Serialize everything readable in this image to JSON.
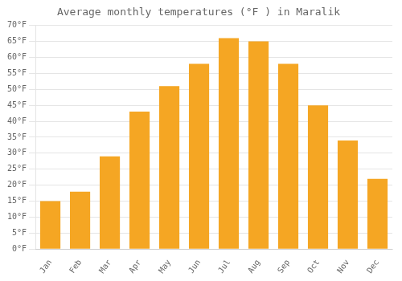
{
  "chart_data": {
    "type": "bar",
    "title": "Average monthly temperatures (°F ) in Maralik",
    "categories": [
      "Jan",
      "Feb",
      "Mar",
      "Apr",
      "May",
      "Jun",
      "Jul",
      "Aug",
      "Sep",
      "Oct",
      "Nov",
      "Dec"
    ],
    "values": [
      15,
      18,
      29,
      43,
      51,
      58,
      66,
      65,
      58,
      45,
      34,
      22
    ],
    "color": "#F5A623",
    "ylim": [
      0,
      70
    ],
    "yticks": [
      {
        "value": 0,
        "label": "0°F"
      },
      {
        "value": 5,
        "label": "5°F"
      },
      {
        "value": 10,
        "label": "10°F"
      },
      {
        "value": 15,
        "label": "15°F"
      },
      {
        "value": 20,
        "label": "20°F"
      },
      {
        "value": 25,
        "label": "25°F"
      },
      {
        "value": 30,
        "label": "30°F"
      },
      {
        "value": 35,
        "label": "35°F"
      },
      {
        "value": 40,
        "label": "40°F"
      },
      {
        "value": 45,
        "label": "45°F"
      },
      {
        "value": 50,
        "label": "50°F"
      },
      {
        "value": 55,
        "label": "55°F"
      },
      {
        "value": 60,
        "label": "60°F"
      },
      {
        "value": 65,
        "label": "65°F"
      },
      {
        "value": 70,
        "label": "70°F"
      }
    ],
    "grid": true
  }
}
